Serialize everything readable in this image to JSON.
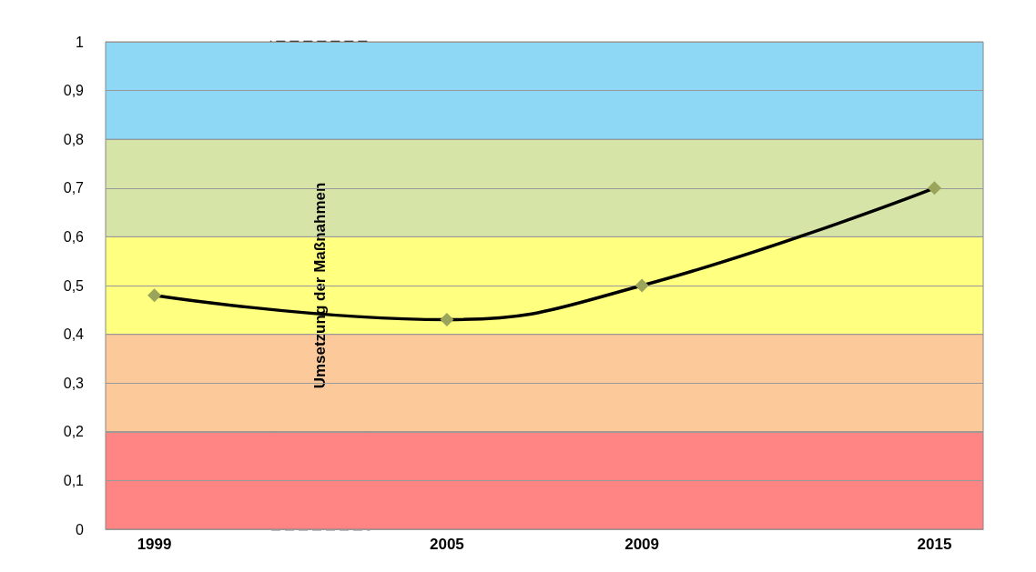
{
  "chart_data": {
    "type": "line",
    "x": [
      1999,
      2005,
      2009,
      2015
    ],
    "series": [
      {
        "color": "#000000",
        "values": [
          0.48,
          0.43,
          0.5,
          0.7
        ]
      }
    ],
    "xlim": [
      1998,
      2016
    ],
    "xticks": [
      1999,
      2005,
      2009,
      2015
    ],
    "ylim": [
      0,
      1
    ],
    "yticks": [
      0,
      {
        "value": 0.1,
        "label": "0,1"
      },
      {
        "value": 0.2,
        "label": "0,2"
      },
      {
        "value": 0.3,
        "label": "0,3"
      },
      {
        "value": 0.4,
        "label": "0,4"
      },
      {
        "value": 0.5,
        "label": "0,5"
      },
      {
        "value": 0.6,
        "label": "0,6"
      },
      {
        "value": 0.7,
        "label": "0,7"
      },
      {
        "value": 0.8,
        "label": "0,8"
      },
      {
        "value": 0.9,
        "label": "0,9"
      },
      1
    ],
    "bands": [
      {
        "axis": "y",
        "from": 0,
        "to": 0.2,
        "color": "#ff8585"
      },
      {
        "axis": "y",
        "from": 0.2,
        "to": 0.4,
        "color": "#fcc99b"
      },
      {
        "axis": "y",
        "from": 0.4,
        "to": 0.6,
        "color": "#ffff80"
      },
      {
        "axis": "y",
        "from": 0.6,
        "to": 0.8,
        "color": "#d6e4a8"
      },
      {
        "axis": "y",
        "from": 0.8,
        "to": 1,
        "color": "#8ed8f6"
      },
      {
        "axis": "x",
        "from": 2001.4,
        "to": 2003.4,
        "label": "Umsetzung der Maßnahmen",
        "color": "#ffffff"
      }
    ],
    "grid": "y",
    "marker": "diamond",
    "line_style": "solid"
  }
}
